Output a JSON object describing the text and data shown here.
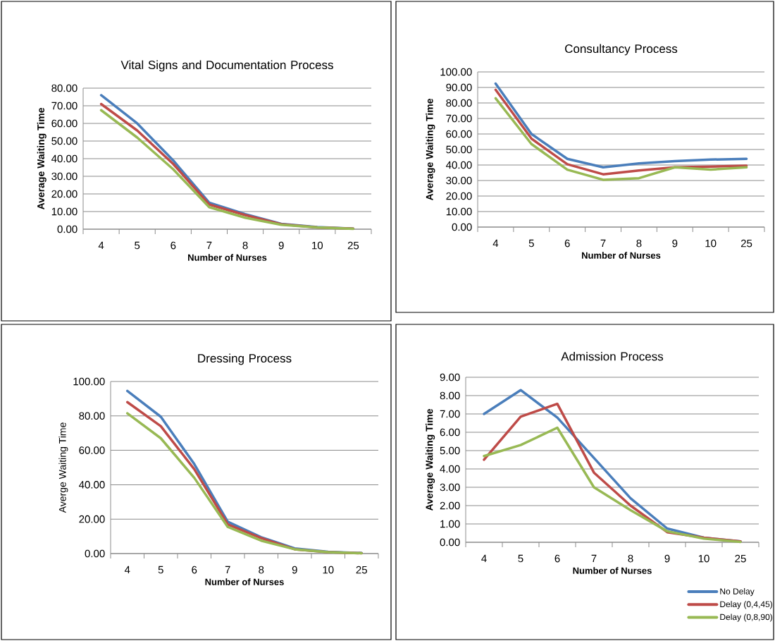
{
  "chart_data": [
    {
      "type": "line",
      "title": "Vital Signs and Documentation Process",
      "xlabel": "Number of Nurses",
      "ylabel": "Average Waiting Time",
      "categories": [
        "4",
        "5",
        "6",
        "7",
        "8",
        "9",
        "10",
        "25"
      ],
      "ylim": [
        0,
        80
      ],
      "yticks": [
        {
          "value": 0,
          "label": "0.00"
        },
        {
          "value": 10,
          "label": "10.00"
        },
        {
          "value": 20,
          "label": "20.00"
        },
        {
          "value": 30,
          "label": "30.00"
        },
        {
          "value": 40,
          "label": "40.00"
        },
        {
          "value": 50,
          "label": "50.00"
        },
        {
          "value": 60,
          "label": "60.00"
        },
        {
          "value": 70,
          "label": "70.00"
        },
        {
          "value": 80,
          "label": "80.00"
        }
      ],
      "grid": "y",
      "legend": false,
      "series": [
        {
          "color": "#4a7ebb",
          "values": [
            76,
            60,
            39,
            15,
            8.5,
            3,
            1.2,
            0.3
          ]
        },
        {
          "color": "#be4b48",
          "values": [
            71,
            56,
            37,
            14,
            8,
            2.8,
            1,
            0.3
          ]
        },
        {
          "color": "#98b954",
          "values": [
            67.5,
            52,
            34,
            12.5,
            6.5,
            2.5,
            1,
            0.2
          ]
        }
      ]
    },
    {
      "type": "line",
      "title": "Consultancy Process",
      "xlabel": "Number of Nurses",
      "ylabel": "Average Waiting Time",
      "categories": [
        "4",
        "5",
        "6",
        "7",
        "8",
        "9",
        "10",
        "25"
      ],
      "ylim": [
        0,
        100
      ],
      "yticks": [
        {
          "value": 0,
          "label": "0.00"
        },
        {
          "value": 10,
          "label": "10.00"
        },
        {
          "value": 20,
          "label": "20.00"
        },
        {
          "value": 30,
          "label": "30.00"
        },
        {
          "value": 40,
          "label": "40.00"
        },
        {
          "value": 50,
          "label": "50.00"
        },
        {
          "value": 60,
          "label": "60.00"
        },
        {
          "value": 70,
          "label": "70.00"
        },
        {
          "value": 80,
          "label": "80.00"
        },
        {
          "value": 90,
          "label": "90.00"
        },
        {
          "value": 100,
          "label": "100.00"
        }
      ],
      "grid": "y",
      "legend": false,
      "series": [
        {
          "color": "#4a7ebb",
          "values": [
            92.5,
            60,
            44,
            38.5,
            41,
            42.5,
            43.5,
            44
          ]
        },
        {
          "color": "#be4b48",
          "values": [
            88.5,
            57,
            40.5,
            34,
            36.5,
            38.5,
            39,
            39.5
          ]
        },
        {
          "color": "#98b954",
          "values": [
            83,
            53.5,
            37,
            30.5,
            31.5,
            38.5,
            37,
            38.5
          ]
        }
      ]
    },
    {
      "type": "line",
      "title": "Dressing Process",
      "xlabel": "Number of Nurses",
      "ylabel": "Averge Waiting Time",
      "categories": [
        "4",
        "5",
        "6",
        "7",
        "8",
        "9",
        "10",
        "25"
      ],
      "ylim": [
        0,
        100
      ],
      "yticks": [
        {
          "value": 0,
          "label": "0.00"
        },
        {
          "value": 20,
          "label": "20.00"
        },
        {
          "value": 40,
          "label": "40.00"
        },
        {
          "value": 60,
          "label": "60.00"
        },
        {
          "value": 80,
          "label": "80.00"
        },
        {
          "value": 100,
          "label": "100.00"
        }
      ],
      "grid": "y",
      "legend": false,
      "series": [
        {
          "color": "#4a7ebb",
          "values": [
            94.5,
            79.5,
            52,
            18.5,
            9.5,
            3,
            1,
            0.3
          ]
        },
        {
          "color": "#be4b48",
          "values": [
            88,
            74,
            49,
            17,
            9,
            2.5,
            0.8,
            0.2
          ]
        },
        {
          "color": "#98b954",
          "values": [
            81.5,
            67,
            44,
            15.5,
            7.5,
            2.5,
            0.8,
            0.2
          ]
        }
      ]
    },
    {
      "type": "line",
      "title": "Admission Process",
      "xlabel": "Number of Nurses",
      "ylabel": "Average Waiting Time",
      "categories": [
        "4",
        "5",
        "6",
        "7",
        "8",
        "9",
        "10",
        "25"
      ],
      "ylim": [
        0,
        9
      ],
      "yticks": [
        {
          "value": 0,
          "label": "0.00"
        },
        {
          "value": 1,
          "label": "1.00"
        },
        {
          "value": 2,
          "label": "2.00"
        },
        {
          "value": 3,
          "label": "3.00"
        },
        {
          "value": 4,
          "label": "4.00"
        },
        {
          "value": 5,
          "label": "5.00"
        },
        {
          "value": 6,
          "label": "6.00"
        },
        {
          "value": 7,
          "label": "7.00"
        },
        {
          "value": 8,
          "label": "8.00"
        },
        {
          "value": 9,
          "label": "9.00"
        }
      ],
      "grid": "y",
      "legend": "bottom right",
      "series": [
        {
          "name": "No Delay",
          "color": "#4a7ebb",
          "values": [
            7.0,
            8.3,
            6.8,
            4.6,
            2.4,
            0.75,
            0.25,
            0.05
          ]
        },
        {
          "name": "Delay (0,4,45)",
          "color": "#be4b48",
          "values": [
            4.5,
            6.85,
            7.55,
            3.8,
            2.0,
            0.55,
            0.25,
            0.05
          ]
        },
        {
          "name": "Delay (0,8,90)",
          "color": "#98b954",
          "values": [
            4.7,
            5.3,
            6.25,
            3.0,
            1.75,
            0.6,
            0.2,
            0.02
          ]
        }
      ]
    }
  ]
}
